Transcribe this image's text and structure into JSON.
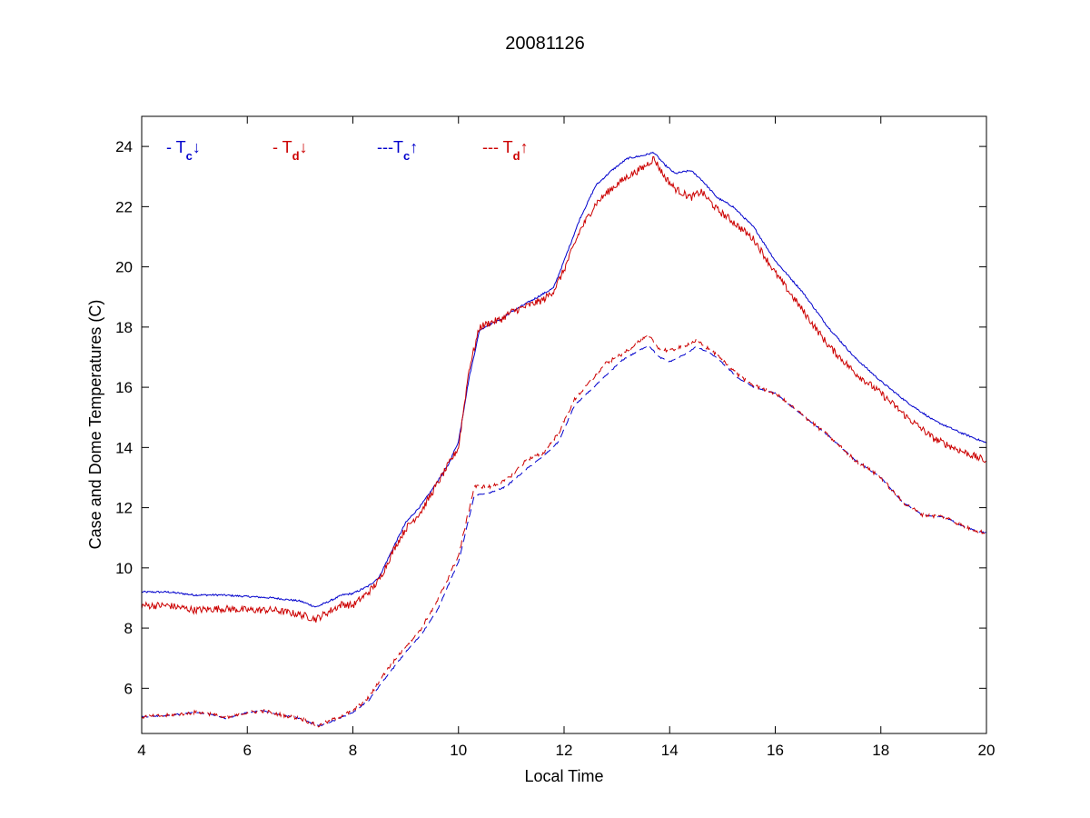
{
  "chart_data": {
    "type": "line",
    "title": "20081126",
    "xlabel": "Local Time",
    "ylabel": "Case and Dome Temperatures (C)",
    "xlim": [
      4,
      20
    ],
    "ylim": [
      4.5,
      25
    ],
    "xticks": [
      4,
      6,
      8,
      10,
      12,
      14,
      16,
      18,
      20
    ],
    "yticks": [
      6,
      8,
      10,
      12,
      14,
      16,
      18,
      20,
      22,
      24
    ],
    "grid": false,
    "legend_position": "top-left",
    "legend": [
      {
        "prefix": "- T",
        "sub": "c",
        "arrow": "↓",
        "color": "#0000cc"
      },
      {
        "prefix": "- T",
        "sub": "d",
        "arrow": "↓",
        "color": "#cc0000"
      },
      {
        "prefix": "---T",
        "sub": "c",
        "arrow": "↑",
        "color": "#0000cc"
      },
      {
        "prefix": "--- T",
        "sub": "d",
        "arrow": "↑",
        "color": "#cc0000"
      }
    ],
    "series": [
      {
        "color": "#0000cc",
        "style": "solid",
        "noise": 0.03,
        "x": [
          4.0,
          4.5,
          5.0,
          5.5,
          6.0,
          6.5,
          7.0,
          7.3,
          7.5,
          7.8,
          8.0,
          8.3,
          8.5,
          8.8,
          9.0,
          9.3,
          9.5,
          9.8,
          10.0,
          10.2,
          10.4,
          10.6,
          10.8,
          11.0,
          11.3,
          11.6,
          11.8,
          12.0,
          12.3,
          12.6,
          12.9,
          13.2,
          13.5,
          13.7,
          13.9,
          14.1,
          14.4,
          14.6,
          14.9,
          15.2,
          15.6,
          16.0,
          16.5,
          17.0,
          17.5,
          18.0,
          18.5,
          19.0,
          19.5,
          20.0
        ],
        "y": [
          9.2,
          9.2,
          9.1,
          9.1,
          9.05,
          9.0,
          8.9,
          8.7,
          8.85,
          9.1,
          9.15,
          9.4,
          9.7,
          10.8,
          11.5,
          12.1,
          12.6,
          13.4,
          14.2,
          16.3,
          17.9,
          18.1,
          18.25,
          18.5,
          18.8,
          19.1,
          19.3,
          20.2,
          21.6,
          22.7,
          23.2,
          23.6,
          23.7,
          23.8,
          23.4,
          23.1,
          23.2,
          22.9,
          22.3,
          22.0,
          21.3,
          20.2,
          19.2,
          18.0,
          17.0,
          16.2,
          15.5,
          14.9,
          14.5,
          14.15
        ]
      },
      {
        "color": "#cc0000",
        "style": "solid",
        "noise": 0.12,
        "x": [
          4.0,
          4.5,
          5.0,
          5.5,
          6.0,
          6.5,
          7.0,
          7.3,
          7.5,
          7.8,
          8.0,
          8.3,
          8.5,
          8.8,
          9.0,
          9.3,
          9.5,
          9.8,
          10.0,
          10.2,
          10.4,
          10.6,
          10.8,
          11.0,
          11.3,
          11.6,
          11.8,
          12.0,
          12.3,
          12.6,
          12.9,
          13.2,
          13.5,
          13.7,
          13.9,
          14.1,
          14.4,
          14.6,
          14.9,
          15.2,
          15.6,
          16.0,
          16.5,
          17.0,
          17.5,
          18.0,
          18.5,
          19.0,
          19.5,
          20.0
        ],
        "y": [
          8.75,
          8.75,
          8.6,
          8.65,
          8.6,
          8.6,
          8.45,
          8.3,
          8.5,
          8.8,
          8.75,
          9.2,
          9.6,
          10.7,
          11.3,
          11.9,
          12.5,
          13.4,
          14.0,
          16.6,
          18.0,
          18.15,
          18.25,
          18.5,
          18.7,
          18.9,
          19.2,
          19.9,
          21.2,
          22.1,
          22.6,
          23.0,
          23.3,
          23.6,
          23.0,
          22.6,
          22.3,
          22.5,
          21.9,
          21.5,
          20.9,
          19.8,
          18.6,
          17.4,
          16.5,
          15.8,
          15.0,
          14.3,
          13.9,
          13.55
        ]
      },
      {
        "color": "#0000cc",
        "style": "dashed",
        "noise": 0.02,
        "x": [
          4.0,
          4.5,
          5.0,
          5.3,
          5.6,
          6.0,
          6.3,
          6.7,
          7.0,
          7.35,
          7.6,
          8.0,
          8.3,
          8.6,
          9.0,
          9.3,
          9.6,
          10.0,
          10.3,
          10.6,
          10.9,
          11.3,
          11.6,
          11.9,
          12.2,
          12.5,
          12.8,
          13.1,
          13.4,
          13.6,
          13.8,
          14.0,
          14.3,
          14.5,
          14.8,
          15.0,
          15.3,
          15.6,
          16.0,
          16.5,
          17.0,
          17.5,
          18.0,
          18.4,
          18.8,
          19.2,
          19.6,
          20.0
        ],
        "y": [
          5.05,
          5.1,
          5.2,
          5.15,
          5.0,
          5.2,
          5.25,
          5.1,
          5.0,
          4.75,
          4.9,
          5.2,
          5.6,
          6.3,
          7.2,
          7.8,
          8.6,
          10.2,
          12.4,
          12.5,
          12.7,
          13.3,
          13.7,
          14.2,
          15.4,
          15.9,
          16.4,
          16.9,
          17.2,
          17.4,
          17.0,
          16.85,
          17.1,
          17.35,
          17.1,
          16.8,
          16.3,
          16.0,
          15.8,
          15.1,
          14.4,
          13.6,
          13.0,
          12.2,
          11.75,
          11.7,
          11.35,
          11.15
        ]
      },
      {
        "color": "#cc0000",
        "style": "dashed",
        "noise": 0.06,
        "x": [
          4.0,
          4.5,
          5.0,
          5.3,
          5.6,
          6.0,
          6.3,
          6.7,
          7.0,
          7.35,
          7.6,
          8.0,
          8.3,
          8.6,
          9.0,
          9.3,
          9.6,
          10.0,
          10.3,
          10.6,
          10.9,
          11.3,
          11.6,
          11.9,
          12.2,
          12.5,
          12.8,
          13.1,
          13.4,
          13.6,
          13.8,
          14.0,
          14.3,
          14.5,
          14.8,
          15.0,
          15.3,
          15.6,
          16.0,
          16.5,
          17.0,
          17.5,
          18.0,
          18.4,
          18.8,
          19.2,
          19.6,
          20.0
        ],
        "y": [
          5.05,
          5.1,
          5.2,
          5.15,
          5.0,
          5.2,
          5.25,
          5.1,
          5.0,
          4.75,
          4.95,
          5.25,
          5.7,
          6.5,
          7.4,
          8.0,
          8.9,
          10.4,
          12.7,
          12.7,
          12.9,
          13.6,
          13.8,
          14.5,
          15.6,
          16.2,
          16.8,
          17.1,
          17.5,
          17.7,
          17.3,
          17.2,
          17.4,
          17.55,
          17.2,
          16.9,
          16.4,
          16.05,
          15.8,
          15.1,
          14.4,
          13.6,
          13.0,
          12.2,
          11.75,
          11.7,
          11.35,
          11.15
        ]
      }
    ]
  }
}
